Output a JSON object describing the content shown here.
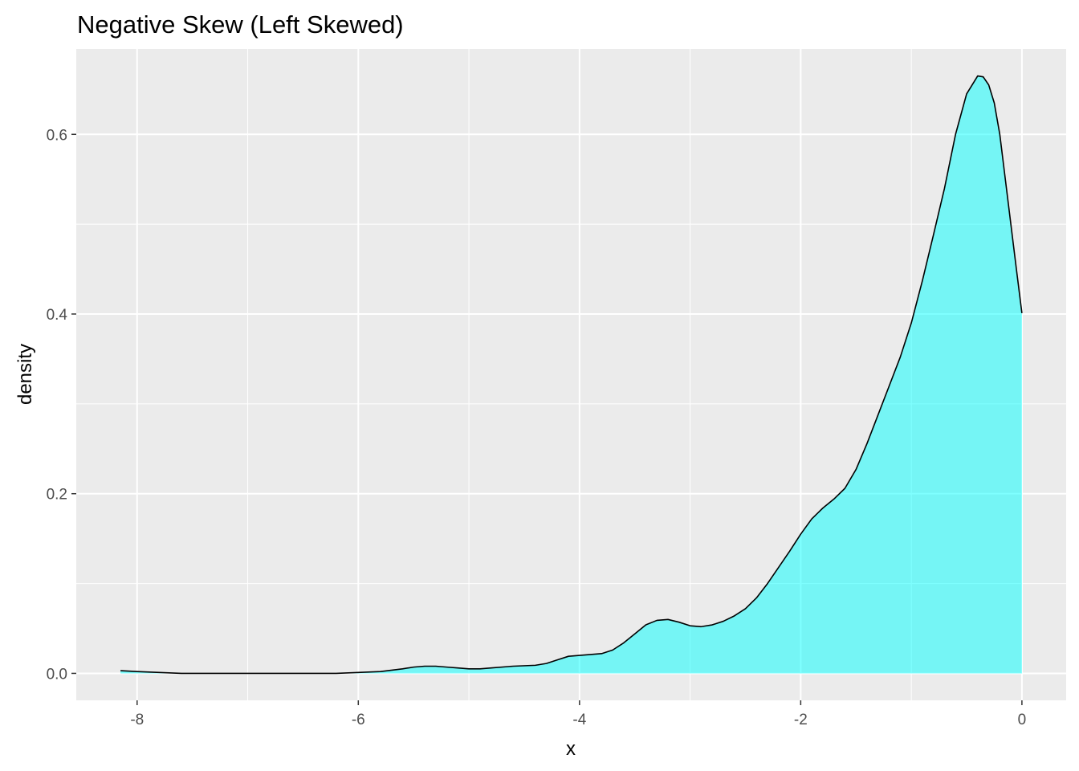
{
  "chart_data": {
    "type": "area",
    "title": "Negative Skew (Left Skewed)",
    "xlabel": "x",
    "ylabel": "density",
    "xlim": [
      -8.55,
      0.4
    ],
    "ylim": [
      -0.03,
      0.695
    ],
    "x_ticks": [
      -8,
      -6,
      -4,
      -2,
      0
    ],
    "x_tick_labels": [
      "-8",
      "-6",
      "-4",
      "-2",
      "0"
    ],
    "x_minor_ticks": [
      -7,
      -5,
      -3,
      -1
    ],
    "y_ticks": [
      0.0,
      0.2,
      0.4,
      0.6
    ],
    "y_tick_labels": [
      "0.0",
      "0.2",
      "0.4",
      "0.6"
    ],
    "y_minor_ticks": [
      0.1,
      0.3,
      0.5
    ],
    "grid": true,
    "legend": "none",
    "colors": {
      "panel_background": "#EBEBEB",
      "grid_line": "#FFFFFF",
      "fill": "#00FFFF",
      "fill_opacity": 0.5,
      "outline": "#000000",
      "tick_text": "#4D4D4D"
    },
    "series": [
      {
        "x": [
          -8.15,
          -8.0,
          -7.8,
          -7.6,
          -7.4,
          -7.2,
          -7.0,
          -6.8,
          -6.6,
          -6.4,
          -6.2,
          -6.0,
          -5.8,
          -5.6,
          -5.5,
          -5.4,
          -5.3,
          -5.2,
          -5.1,
          -5.0,
          -4.9,
          -4.8,
          -4.6,
          -4.4,
          -4.3,
          -4.2,
          -4.1,
          -4.0,
          -3.9,
          -3.8,
          -3.7,
          -3.6,
          -3.5,
          -3.4,
          -3.3,
          -3.2,
          -3.1,
          -3.0,
          -2.9,
          -2.8,
          -2.7,
          -2.6,
          -2.5,
          -2.4,
          -2.3,
          -2.2,
          -2.1,
          -2.0,
          -1.9,
          -1.8,
          -1.7,
          -1.6,
          -1.5,
          -1.4,
          -1.3,
          -1.2,
          -1.1,
          -1.0,
          -0.9,
          -0.8,
          -0.7,
          -0.6,
          -0.5,
          -0.4,
          -0.35,
          -0.3,
          -0.25,
          -0.2,
          -0.15,
          -0.1,
          -0.05,
          0.0
        ],
        "y": [
          0.003,
          0.002,
          0.001,
          0.0,
          0.0,
          0.0,
          0.0,
          0.0,
          0.0,
          0.0,
          0.0,
          0.001,
          0.002,
          0.005,
          0.007,
          0.008,
          0.008,
          0.007,
          0.006,
          0.005,
          0.005,
          0.006,
          0.008,
          0.009,
          0.011,
          0.015,
          0.019,
          0.02,
          0.021,
          0.022,
          0.026,
          0.034,
          0.044,
          0.054,
          0.059,
          0.06,
          0.057,
          0.053,
          0.052,
          0.054,
          0.058,
          0.064,
          0.072,
          0.084,
          0.1,
          0.118,
          0.136,
          0.155,
          0.172,
          0.184,
          0.194,
          0.206,
          0.227,
          0.256,
          0.288,
          0.32,
          0.352,
          0.39,
          0.437,
          0.488,
          0.54,
          0.6,
          0.645,
          0.665,
          0.664,
          0.655,
          0.635,
          0.6,
          0.55,
          0.5,
          0.45,
          0.401
        ]
      }
    ]
  }
}
